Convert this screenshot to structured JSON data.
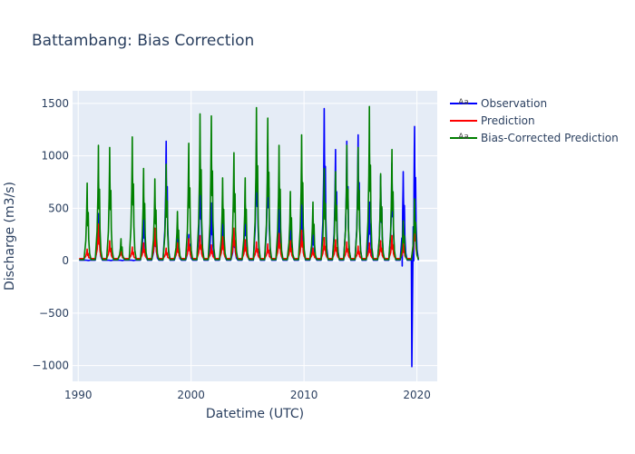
{
  "chart_data": {
    "type": "line",
    "title": "Battambang: Bias Correction",
    "xlabel": "Datetime (UTC)",
    "ylabel": "Discharge (m3/s)",
    "xlim": [
      1989.5,
      2021.8
    ],
    "ylim": [
      -1150,
      1620
    ],
    "xticks": [
      1990,
      2000,
      2010,
      2020
    ],
    "yticks": [
      -1000,
      -500,
      0,
      500,
      1000,
      1500
    ],
    "ytick_labels": [
      "−1000",
      "−500",
      "0",
      "500",
      "1000",
      "1500"
    ],
    "grid": true,
    "legend_position": "top-right",
    "series": [
      {
        "name": "Observation",
        "color": "#0000ff",
        "annual_peaks": [
          [
            1990.79,
            0
          ],
          [
            1991.79,
            450
          ],
          [
            1992.79,
            0
          ],
          [
            1993.79,
            0
          ],
          [
            1994.79,
            0
          ],
          [
            1995.79,
            480
          ],
          [
            1996.79,
            300
          ],
          [
            1997.79,
            1140
          ],
          [
            1998.79,
            220
          ],
          [
            1999.79,
            250
          ],
          [
            2000.79,
            880
          ],
          [
            2001.79,
            550
          ],
          [
            2002.79,
            420
          ],
          [
            2003.79,
            280
          ],
          [
            2004.79,
            530
          ],
          [
            2005.79,
            1150
          ],
          [
            2006.79,
            1120
          ],
          [
            2007.79,
            490
          ],
          [
            2008.79,
            420
          ],
          [
            2009.79,
            620
          ],
          [
            2010.79,
            330
          ],
          [
            2011.79,
            1450
          ],
          [
            2012.79,
            1060
          ],
          [
            2013.79,
            1140
          ],
          [
            2014.79,
            1200
          ],
          [
            2015.79,
            560
          ],
          [
            2016.79,
            810
          ],
          [
            2017.79,
            930
          ],
          [
            2018.79,
            850
          ],
          [
            2019.79,
            1280
          ]
        ],
        "negative_excursion": [
          [
            2018.7,
            -50
          ],
          [
            2019.55,
            -1010
          ],
          [
            2019.72,
            0
          ]
        ]
      },
      {
        "name": "Prediction",
        "color": "#ff0000",
        "annual_peaks": [
          [
            1990.79,
            110
          ],
          [
            1991.79,
            350
          ],
          [
            1992.79,
            190
          ],
          [
            1993.79,
            110
          ],
          [
            1994.79,
            130
          ],
          [
            1995.79,
            170
          ],
          [
            1996.79,
            310
          ],
          [
            1997.79,
            120
          ],
          [
            1998.79,
            170
          ],
          [
            1999.79,
            210
          ],
          [
            2000.79,
            240
          ],
          [
            2001.79,
            150
          ],
          [
            2002.79,
            230
          ],
          [
            2003.79,
            310
          ],
          [
            2004.79,
            200
          ],
          [
            2005.79,
            180
          ],
          [
            2006.79,
            160
          ],
          [
            2007.79,
            260
          ],
          [
            2008.79,
            190
          ],
          [
            2009.79,
            290
          ],
          [
            2010.79,
            120
          ],
          [
            2011.79,
            220
          ],
          [
            2012.79,
            200
          ],
          [
            2013.79,
            180
          ],
          [
            2014.79,
            140
          ],
          [
            2015.79,
            170
          ],
          [
            2016.79,
            190
          ],
          [
            2017.79,
            240
          ],
          [
            2018.79,
            170
          ],
          [
            2019.79,
            420
          ]
        ]
      },
      {
        "name": "Bias-Corrected Prediction",
        "color": "#008000",
        "annual_peaks": [
          [
            1990.79,
            740
          ],
          [
            1991.79,
            1100
          ],
          [
            1992.79,
            1080
          ],
          [
            1993.79,
            210
          ],
          [
            1994.79,
            1180
          ],
          [
            1995.79,
            880
          ],
          [
            1996.79,
            780
          ],
          [
            1997.79,
            920
          ],
          [
            1998.79,
            470
          ],
          [
            1999.79,
            1120
          ],
          [
            2000.79,
            1400
          ],
          [
            2001.79,
            1380
          ],
          [
            2002.79,
            790
          ],
          [
            2003.79,
            1030
          ],
          [
            2004.79,
            790
          ],
          [
            2005.79,
            1460
          ],
          [
            2006.79,
            1360
          ],
          [
            2007.79,
            1100
          ],
          [
            2008.79,
            660
          ],
          [
            2009.79,
            1200
          ],
          [
            2010.79,
            560
          ],
          [
            2011.79,
            880
          ],
          [
            2012.79,
            850
          ],
          [
            2013.79,
            1100
          ],
          [
            2014.79,
            1080
          ],
          [
            2015.79,
            1470
          ],
          [
            2016.79,
            830
          ],
          [
            2017.79,
            1060
          ],
          [
            2018.79,
            380
          ],
          [
            2019.79,
            590
          ]
        ]
      }
    ]
  }
}
